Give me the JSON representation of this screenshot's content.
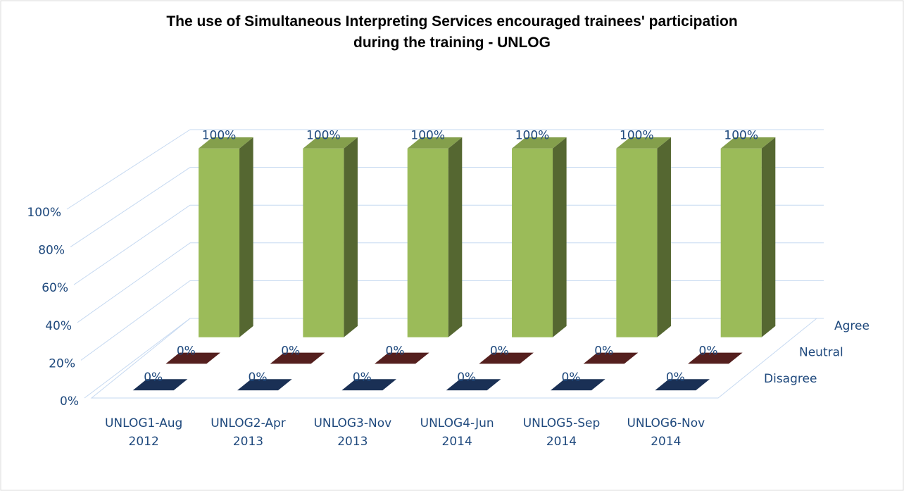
{
  "chart_data": {
    "type": "bar3d",
    "title": "The use of Simultaneous Interpreting Services encouraged trainees' participation during the training - UNLOG",
    "categories": [
      "UNLOG1-Aug 2012",
      "UNLOG2-Apr 2013",
      "UNLOG3-Nov 2013",
      "UNLOG4-Jun 2014",
      "UNLOG5-Sep 2014",
      "UNLOG6-Nov 2014"
    ],
    "series": [
      {
        "name": "Disagree",
        "color": "#1f3864",
        "values": [
          0,
          0,
          0,
          0,
          0,
          0
        ],
        "value_labels": [
          "0%",
          "0%",
          "0%",
          "0%",
          "0%",
          "0%"
        ]
      },
      {
        "name": "Neutral",
        "color": "#632523",
        "values": [
          0,
          0,
          0,
          0,
          0,
          0
        ],
        "value_labels": [
          "0%",
          "0%",
          "0%",
          "0%",
          "0%",
          "0%"
        ]
      },
      {
        "name": "Agree",
        "color": "#9bbb59",
        "values": [
          100,
          100,
          100,
          100,
          100,
          100
        ],
        "value_labels": [
          "100%",
          "100%",
          "100%",
          "100%",
          "100%",
          "100%"
        ]
      }
    ],
    "ylim": [
      0,
      100
    ],
    "yticks": [
      {
        "value": 0,
        "label": "0%"
      },
      {
        "value": 20,
        "label": "20%"
      },
      {
        "value": 40,
        "label": "40%"
      },
      {
        "value": 60,
        "label": "60%"
      },
      {
        "value": 80,
        "label": "80%"
      },
      {
        "value": 100,
        "label": "100%"
      }
    ],
    "grid": true
  }
}
